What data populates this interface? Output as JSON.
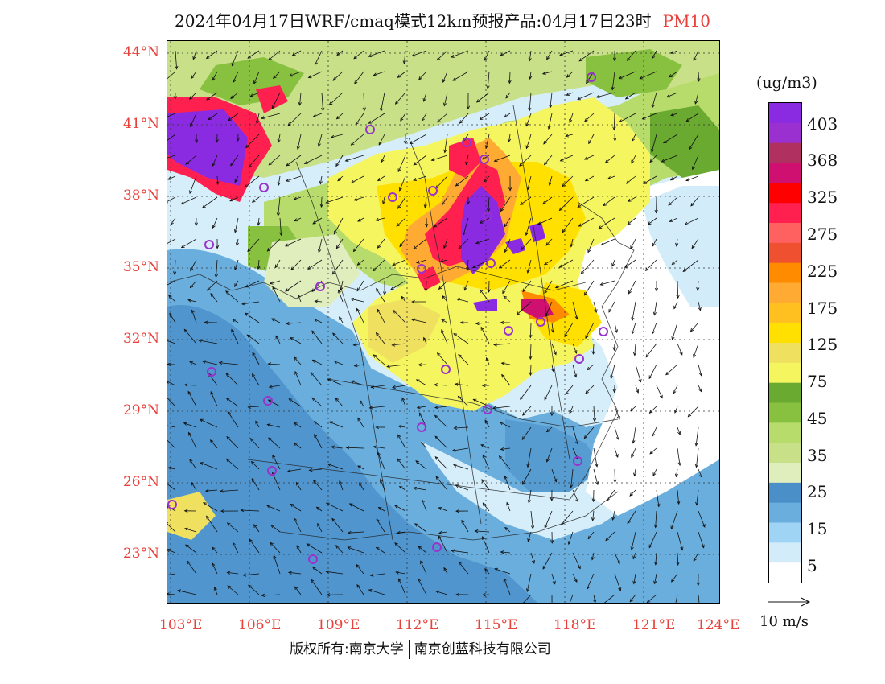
{
  "header": {
    "title": "2024年04月17日WRF/cmaq模式12km预报产品:04月17日23时",
    "pollutant": "PM10"
  },
  "map": {
    "lat_labels": [
      "44°N",
      "41°N",
      "38°N",
      "35°N",
      "32°N",
      "29°N",
      "26°N",
      "23°N"
    ],
    "lon_labels": [
      "103°E",
      "106°E",
      "109°E",
      "112°E",
      "115°E",
      "118°E",
      "121°E",
      "124°E"
    ]
  },
  "colorbar": {
    "unit": "(ug/m3)",
    "labels": [
      "403",
      "368",
      "325",
      "275",
      "225",
      "175",
      "125",
      "75",
      "45",
      "35",
      "25",
      "15",
      "5"
    ],
    "colors": [
      "#8a2be2",
      "#9b30d0",
      "#b03060",
      "#d01070",
      "#ff0000",
      "#ff2050",
      "#ff6060",
      "#ee5030",
      "#ff8c00",
      "#ffaa33",
      "#ffc020",
      "#ffe000",
      "#f0e060",
      "#f5f560",
      "#6aaa30",
      "#88c040",
      "#b8dc6c",
      "#c8e088",
      "#dfeebc",
      "#4a8fc8",
      "#6aaede",
      "#a0d4f4",
      "#d2ecfa",
      "#ffffff"
    ],
    "wind_reference": "10 m/s"
  },
  "stations": {
    "color": "#9933cc"
  },
  "footer": {
    "copyright": "版权所有:南京大学",
    "company": "南京创蓝科技有限公司"
  }
}
